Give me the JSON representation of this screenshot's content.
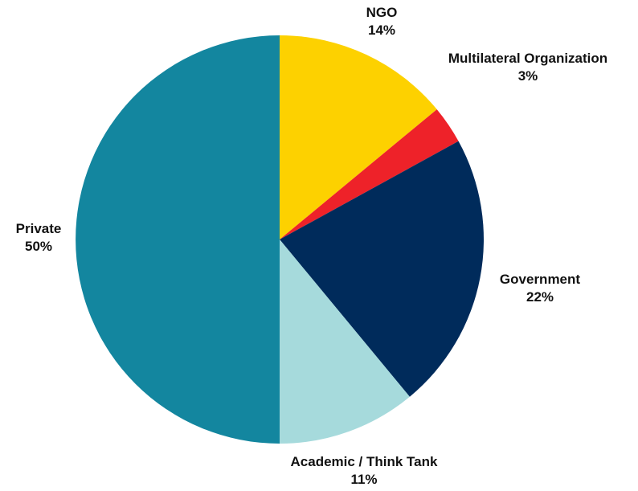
{
  "chart_data": {
    "type": "pie",
    "title": "",
    "start_angle_deg": 0,
    "direction": "clockwise",
    "slices": [
      {
        "label": "NGO",
        "value_label": "14%",
        "value": 14,
        "color": "#FDD100"
      },
      {
        "label": "Multilateral Organization",
        "value_label": "3%",
        "value": 3,
        "color": "#EE2229"
      },
      {
        "label": "Government",
        "value_label": "22%",
        "value": 22,
        "color": "#002B5B"
      },
      {
        "label": "Academic / Think Tank",
        "value_label": "11%",
        "value": 11,
        "color": "#A6DADC"
      },
      {
        "label": "Private",
        "value_label": "50%",
        "value": 50,
        "color": "#13869F"
      }
    ]
  }
}
